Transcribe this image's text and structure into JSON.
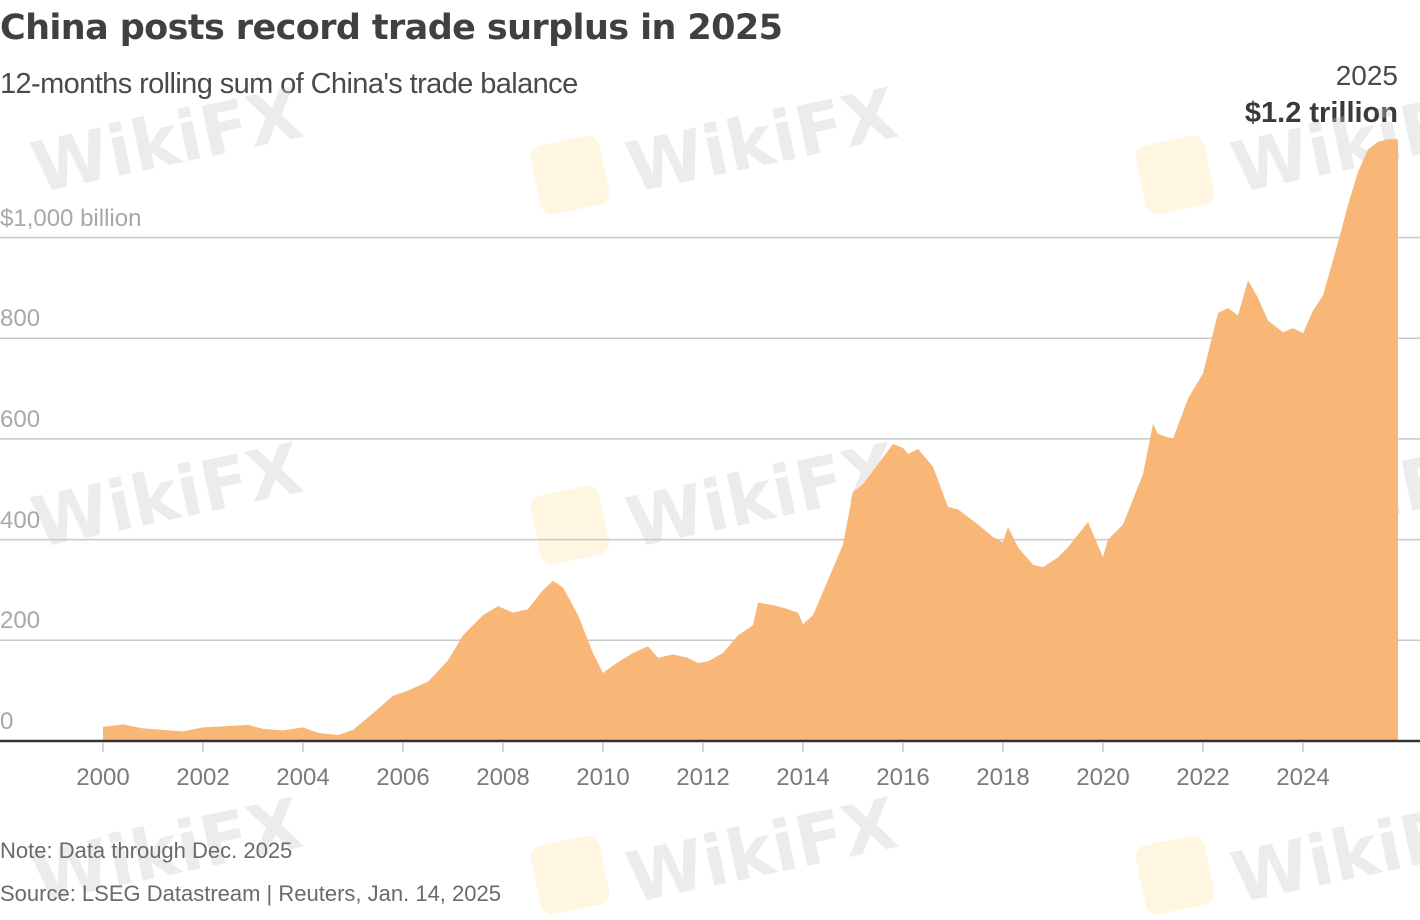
{
  "header": {
    "title": "China posts record trade surplus in 2025",
    "subtitle": "12-months rolling sum of China's trade balance"
  },
  "annotation": {
    "year": "2025",
    "value": "$1.2 trillion"
  },
  "footer": {
    "note": "Note: Data through Dec. 2025",
    "source": "Source: LSEG Datastream | Reuters, Jan. 14, 2025"
  },
  "watermark": "WikiFX",
  "colors": {
    "area_fill": "#F8B776",
    "gridline": "#c8c8c8",
    "baseline": "#333333",
    "tick": "#c8c8c8"
  },
  "chart_data": {
    "type": "area",
    "title": "China posts record trade surplus in 2025",
    "subtitle": "12-months rolling sum of China's trade balance",
    "xlabel": "",
    "ylabel": "$ billion",
    "ylim": [
      0,
      1000
    ],
    "xlim": [
      2000,
      2025.9
    ],
    "grid": true,
    "legend": null,
    "y_ticks": [
      {
        "value": 0,
        "label": "0"
      },
      {
        "value": 200,
        "label": "200"
      },
      {
        "value": 400,
        "label": "400"
      },
      {
        "value": 600,
        "label": "600"
      },
      {
        "value": 800,
        "label": "800"
      },
      {
        "value": 1000,
        "label": "$1,000 billion"
      }
    ],
    "x_ticks": [
      "2000",
      "2002",
      "2004",
      "2006",
      "2008",
      "2010",
      "2012",
      "2014",
      "2016",
      "2018",
      "2020",
      "2022",
      "2024"
    ],
    "annotations": [
      {
        "x": 2025.9,
        "text": "2025 $1.2 trillion"
      }
    ],
    "x": [
      2000.0,
      2000.4,
      2000.8,
      2001.2,
      2001.6,
      2002.0,
      2002.4,
      2002.9,
      2003.2,
      2003.6,
      2004.0,
      2004.3,
      2004.7,
      2005.0,
      2005.4,
      2005.8,
      2006.1,
      2006.5,
      2006.9,
      2007.2,
      2007.6,
      2007.9,
      2008.2,
      2008.5,
      2008.8,
      2009.0,
      2009.2,
      2009.5,
      2009.8,
      2010.0,
      2010.2,
      2010.6,
      2010.9,
      2011.1,
      2011.4,
      2011.7,
      2011.9,
      2012.1,
      2012.4,
      2012.7,
      2013.0,
      2013.1,
      2013.4,
      2013.6,
      2013.9,
      2014.0,
      2014.2,
      2014.5,
      2014.8,
      2015.0,
      2015.2,
      2015.5,
      2015.8,
      2016.0,
      2016.1,
      2016.3,
      2016.6,
      2016.9,
      2017.1,
      2017.5,
      2017.8,
      2018.0,
      2018.1,
      2018.3,
      2018.6,
      2018.8,
      2019.1,
      2019.3,
      2019.7,
      2020.0,
      2020.1,
      2020.4,
      2020.8,
      2021.0,
      2021.1,
      2021.4,
      2021.7,
      2022.0,
      2022.3,
      2022.5,
      2022.7,
      2022.9,
      2023.1,
      2023.3,
      2023.6,
      2023.8,
      2024.0,
      2024.2,
      2024.4,
      2024.7,
      2024.9,
      2025.1,
      2025.3,
      2025.5,
      2025.7,
      2025.9
    ],
    "values": [
      28,
      33,
      25,
      22,
      19,
      27,
      29,
      32,
      24,
      21,
      27,
      16,
      12,
      22,
      55,
      90,
      100,
      118,
      160,
      210,
      250,
      268,
      255,
      262,
      300,
      318,
      305,
      250,
      175,
      135,
      150,
      175,
      188,
      165,
      172,
      165,
      155,
      158,
      175,
      210,
      230,
      275,
      270,
      265,
      255,
      232,
      250,
      320,
      390,
      495,
      510,
      550,
      590,
      582,
      570,
      580,
      545,
      465,
      460,
      430,
      405,
      395,
      425,
      385,
      350,
      345,
      365,
      385,
      435,
      365,
      400,
      430,
      530,
      630,
      610,
      600,
      680,
      730,
      850,
      860,
      845,
      915,
      880,
      835,
      812,
      820,
      810,
      855,
      885,
      990,
      1065,
      1130,
      1175,
      1190,
      1195,
      1195
    ]
  }
}
